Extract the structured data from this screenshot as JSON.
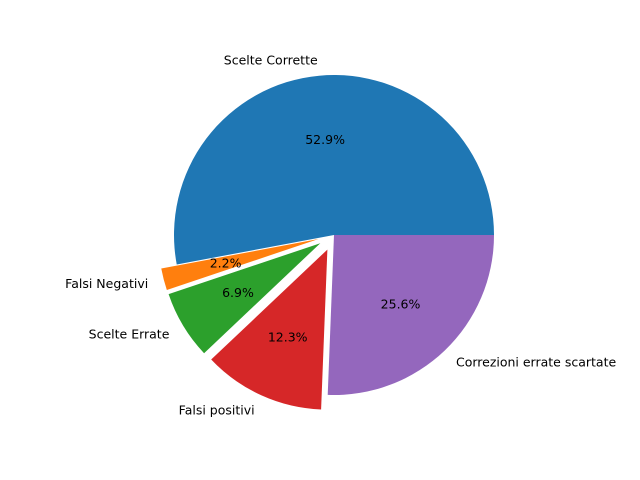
{
  "chart_data": {
    "type": "pie",
    "title": "",
    "slices": [
      {
        "label": "Scelte Corrette",
        "value": 52.9,
        "pct_label": "52.9%",
        "color": "#1f77b4",
        "exploded": false
      },
      {
        "label": "Falsi Negativi",
        "value": 2.2,
        "pct_label": "2.2%",
        "color": "#ff7f0e",
        "exploded": true
      },
      {
        "label": "Scelte Errate",
        "value": 6.9,
        "pct_label": "6.9%",
        "color": "#2ca02c",
        "exploded": true
      },
      {
        "label": "Falsi positivi",
        "value": 12.3,
        "pct_label": "12.3%",
        "color": "#d62728",
        "exploded": true
      },
      {
        "label": "Correzioni errate scartate",
        "value": 25.6,
        "pct_label": "25.6%",
        "color": "#9467bd",
        "exploded": false
      }
    ],
    "start_angle_deg": 0,
    "direction": "counterclockwise",
    "legend": "none"
  }
}
